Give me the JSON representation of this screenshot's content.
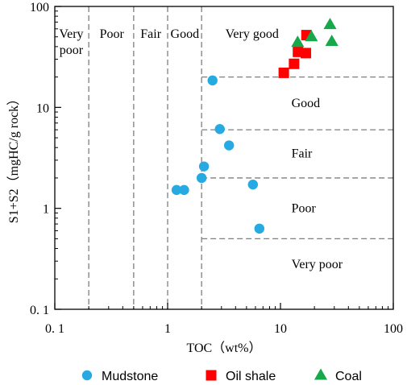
{
  "chart_data": {
    "type": "scatter",
    "title": "",
    "xlabel": "TOC（wt%）",
    "ylabel": "S1+S2（mgHC/g rock）",
    "xscale": "log",
    "yscale": "log",
    "xlim": [
      0.1,
      100
    ],
    "ylim": [
      0.1,
      100
    ],
    "x_ticks": [
      {
        "value": 0.1,
        "label": "0. 1"
      },
      {
        "value": 1,
        "label": "1"
      },
      {
        "value": 10,
        "label": "10"
      },
      {
        "value": 100,
        "label": "100"
      }
    ],
    "y_ticks": [
      {
        "value": 0.1,
        "label": "0. 1"
      },
      {
        "value": 1,
        "label": "1"
      },
      {
        "value": 10,
        "label": "10"
      },
      {
        "value": 100,
        "label": "100"
      }
    ],
    "grid": false,
    "legend_position": "bottom",
    "toc_boundaries": [
      0.2,
      0.5,
      1.0,
      2.0
    ],
    "s_boundaries": [
      0.5,
      2.0,
      6.0,
      20.0
    ],
    "toc_classes": [
      {
        "name": "Very poor",
        "lines": [
          "Very",
          "poor"
        ],
        "x": 0.14
      },
      {
        "name": "Poor",
        "lines": [
          "Poor"
        ],
        "x": 0.32
      },
      {
        "name": "Fair",
        "lines": [
          "Fair"
        ],
        "x": 0.71
      },
      {
        "name": "Good",
        "lines": [
          "Good"
        ],
        "x": 1.42
      },
      {
        "name": "Very good",
        "lines": [
          "Very good"
        ],
        "x": 5.6
      }
    ],
    "s_classes": [
      {
        "name": "Good",
        "x": 12.5,
        "y": 11.0
      },
      {
        "name": "Fair",
        "x": 12.5,
        "y": 3.5
      },
      {
        "name": "Poor",
        "x": 12.5,
        "y": 1.0
      },
      {
        "name": "Very poor",
        "x": 12.5,
        "y": 0.28
      }
    ],
    "series": [
      {
        "name": "Mudstone",
        "marker": "circle",
        "color": "#27a9e1",
        "points": [
          [
            2.5,
            18.5
          ],
          [
            2.9,
            6.1
          ],
          [
            3.5,
            4.2
          ],
          [
            2.1,
            2.6
          ],
          [
            2.0,
            2.0
          ],
          [
            1.2,
            1.52
          ],
          [
            1.4,
            1.52
          ],
          [
            5.7,
            1.72
          ],
          [
            6.5,
            0.63
          ]
        ]
      },
      {
        "name": "Oil shale",
        "marker": "square",
        "color": "#ff0000",
        "points": [
          [
            10.7,
            22.0
          ],
          [
            13.2,
            27.0
          ],
          [
            14.3,
            35.5
          ],
          [
            16.8,
            34.5
          ],
          [
            17.0,
            52.0
          ]
        ]
      },
      {
        "name": "Coal",
        "marker": "triangle",
        "color": "#16a84a",
        "points": [
          [
            14.2,
            44.0
          ],
          [
            18.8,
            50.0
          ],
          [
            27.5,
            66.0
          ],
          [
            28.5,
            45.0
          ]
        ]
      }
    ]
  }
}
